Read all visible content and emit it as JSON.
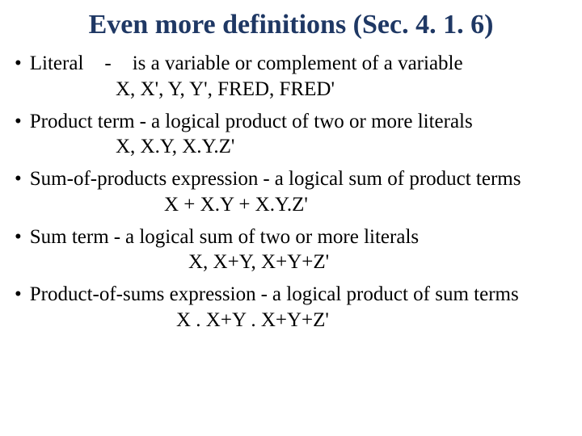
{
  "title": "Even more definitions (Sec. 4. 1. 6)",
  "items": [
    {
      "term": "Literal",
      "separator": "-",
      "definition": "is a variable or complement of a variable",
      "example": "X, X', Y, Y', FRED, FRED'",
      "exampleClass": "example"
    },
    {
      "term": "Product term",
      "separator": "-",
      "definition": "a logical product of two or more literals",
      "example": "X, X.Y, X.Y.Z'",
      "exampleClass": "example"
    },
    {
      "term": "Sum-of-products expression",
      "separator": "-",
      "definition": "a logical sum of product terms",
      "example": "X + X.Y + X.Y.Z'",
      "exampleClass": "example example-center"
    },
    {
      "term": "Sum term",
      "separator": "-",
      "definition": "a logical sum of two or more literals",
      "example": "X, X+Y, X+Y+Z'",
      "exampleClass": "example example-mid"
    },
    {
      "term": "Product-of-sums expression",
      "separator": "-",
      "definition": "a logical product of sum terms",
      "example": "X . X+Y . X+Y+Z'",
      "exampleClass": "example example-far"
    }
  ]
}
